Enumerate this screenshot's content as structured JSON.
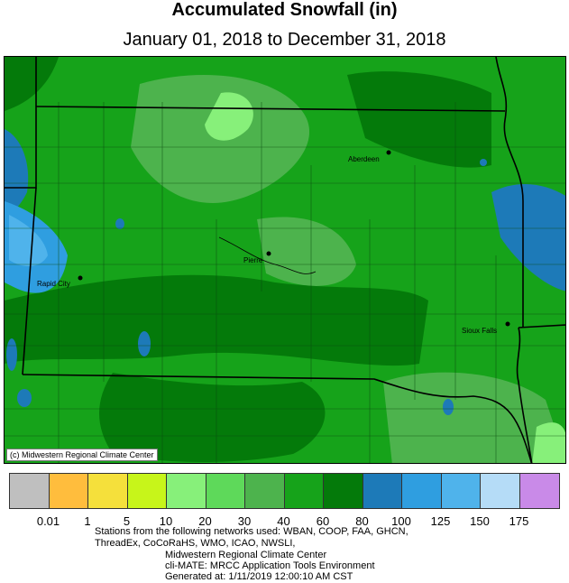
{
  "title": "Accumulated Snowfall (in)",
  "subtitle": "January 01, 2018 to December 31, 2018",
  "map": {
    "cities": [
      {
        "name": "Aberdeen"
      },
      {
        "name": "Pierre"
      },
      {
        "name": "Rapid City"
      },
      {
        "name": "Sioux Falls"
      }
    ],
    "credit": "(c) Midwestern Regional Climate Center"
  },
  "legend": {
    "colors": [
      "#bfbfbf",
      "#ffbd3d",
      "#f5e03b",
      "#c7f51a",
      "#87f07a",
      "#5ed95a",
      "#4db34d",
      "#16a31a",
      "#047a0a",
      "#1d7ab8",
      "#2f9ee0",
      "#4fb3eb",
      "#b5dcf7",
      "#c98ae8"
    ],
    "labels": [
      "0.01",
      "1",
      "5",
      "10",
      "20",
      "30",
      "40",
      "60",
      "80",
      "100",
      "125",
      "150",
      "175"
    ]
  },
  "footer": {
    "line1": "Stations from the following networks used: WBAN, COOP, FAA, GHCN,",
    "line2": "ThreadEx, CoCoRaHS, WMO, ICAO, NWSLI,",
    "line3": "Midwestern Regional Climate Center",
    "line4": "cli-MATE: MRCC Application Tools Environment",
    "line5": "Generated at: 1/11/2019 12:00:10 AM CST"
  }
}
